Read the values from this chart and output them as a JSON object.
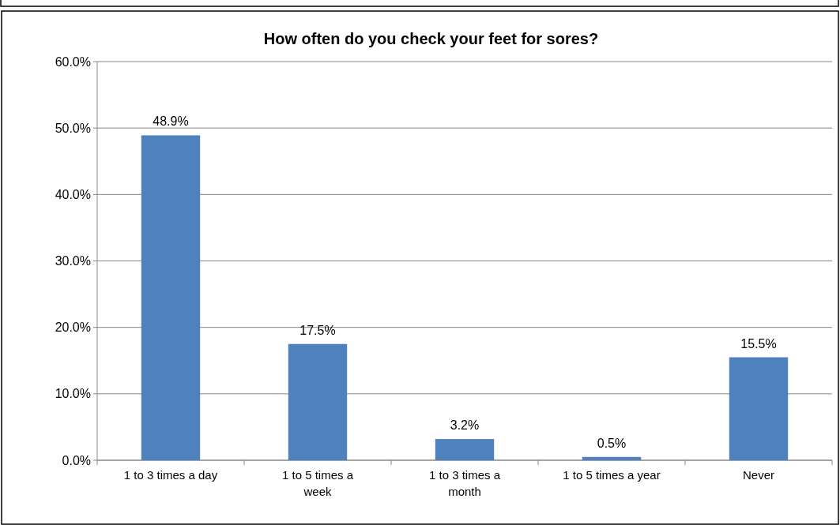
{
  "chart_data": {
    "type": "bar",
    "title": "How often do you check your feet for sores?",
    "categories": [
      "1 to 3 times a day",
      "1 to 5 times a week",
      "1 to 3 times a month",
      "1 to 5 times a year",
      "Never"
    ],
    "values": [
      48.9,
      17.5,
      3.2,
      0.5,
      15.5
    ],
    "value_labels": [
      "48.9%",
      "17.5%",
      "3.2%",
      "0.5%",
      "15.5%"
    ],
    "color": "#4f81bd",
    "ylim": [
      0,
      60
    ],
    "yticks": [
      {
        "value": 0,
        "label": "0.0%"
      },
      {
        "value": 10,
        "label": "10.0%"
      },
      {
        "value": 20,
        "label": "20.0%"
      },
      {
        "value": 30,
        "label": "30.0%"
      },
      {
        "value": 40,
        "label": "40.0%"
      },
      {
        "value": 50,
        "label": "50.0%"
      },
      {
        "value": 60,
        "label": "60.0%"
      }
    ],
    "grid": "y"
  }
}
